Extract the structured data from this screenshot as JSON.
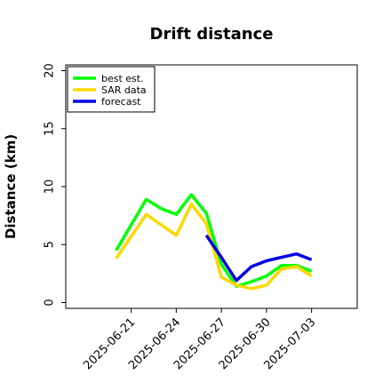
{
  "chart_data": {
    "type": "line",
    "title": "Drift distance",
    "xlabel": "",
    "ylabel": "Distance (km)",
    "ylim": [
      -0.5,
      20.5
    ],
    "xlim": [
      "2025-06-18",
      "2025-07-06"
    ],
    "yticks": [
      0,
      5,
      10,
      15,
      20
    ],
    "yticklabels": [
      "0",
      "5",
      "10",
      "15",
      "20"
    ],
    "xticks": [
      "2025-06-21",
      "2025-06-24",
      "2025-06-27",
      "2025-06-30",
      "2025-07-03"
    ],
    "xticklabels": [
      "2025-06-21",
      "2025-06-24",
      "2025-06-27",
      "2025-06-30",
      "2025-07-03"
    ],
    "legend_position": "top-left",
    "grid": false,
    "series": [
      {
        "name": "best est.",
        "color": "#00ff00",
        "x": [
          "2025-06-20",
          "2025-06-22",
          "2025-06-23",
          "2025-06-24",
          "2025-06-25",
          "2025-06-26",
          "2025-06-27",
          "2025-06-28",
          "2025-06-29",
          "2025-06-30",
          "2025-07-01",
          "2025-07-02",
          "2025-07-03"
        ],
        "values": [
          4.5,
          8.9,
          8.1,
          7.6,
          9.3,
          7.7,
          3.3,
          1.4,
          1.8,
          2.3,
          3.2,
          3.2,
          2.7
        ]
      },
      {
        "name": "SAR data",
        "color": "#ffd700",
        "x": [
          "2025-06-20",
          "2025-06-22",
          "2025-06-24",
          "2025-06-25",
          "2025-06-26",
          "2025-06-27",
          "2025-06-28",
          "2025-06-29",
          "2025-06-30",
          "2025-07-01",
          "2025-07-02",
          "2025-07-03"
        ],
        "values": [
          3.8,
          7.6,
          5.8,
          8.5,
          6.8,
          2.2,
          1.5,
          1.2,
          1.5,
          2.9,
          3.1,
          2.3
        ]
      },
      {
        "name": "forecast",
        "color": "#0000e6",
        "x": [
          "2025-06-26",
          "2025-06-27",
          "2025-06-28",
          "2025-06-29",
          "2025-06-30",
          "2025-07-01",
          "2025-07-02",
          "2025-07-03"
        ],
        "values": [
          5.8,
          3.9,
          1.9,
          3.1,
          3.6,
          3.9,
          4.2,
          3.7
        ]
      }
    ]
  }
}
